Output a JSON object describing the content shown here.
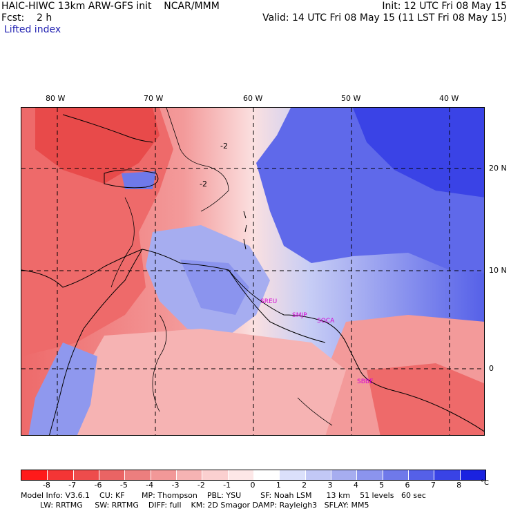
{
  "header": {
    "title": "HAIC-HIWC 13km ARW-GFS init    NCAR/MMM",
    "init": "Init: 12 UTC Fri 08 May 15",
    "fcst": "Fcst:    2 h",
    "valid": "Valid: 14 UTC Fri 08 May 15 (11 LST Fri 08 May 15)",
    "field": "Lifted index"
  },
  "axes": {
    "lon_labels": [
      "80 W",
      "70 W",
      "60 W",
      "50 W",
      "40 W"
    ],
    "lat_labels": [
      "20 N",
      "10 N",
      "0"
    ]
  },
  "stations": [
    "SREU",
    "SMJP",
    "SOCA",
    "SBBE"
  ],
  "contour_labels": [
    "-2",
    "-2"
  ],
  "colorbar": {
    "ticks": [
      "-8",
      "-7",
      "-6",
      "-5",
      "-4",
      "-3",
      "-2",
      "-1",
      "0",
      "1",
      "2",
      "3",
      "4",
      "5",
      "6",
      "7",
      "8"
    ],
    "unit": "°C",
    "colors": [
      "#ff1a1a",
      "#f43535",
      "#ee4c4c",
      "#ea6464",
      "#ec7e7e",
      "#f29898",
      "#f6b3b3",
      "#fbd0d0",
      "#fde7e7",
      "#ffffff",
      "#dbe0fb",
      "#c2c8f6",
      "#a6adf0",
      "#8b94ee",
      "#6f79ea",
      "#5560e8",
      "#3943e6",
      "#1a22e0"
    ]
  },
  "footer": {
    "line1": "Model Info: V3.6.1    CU: KF       MP: Thompson    PBL: YSU        SF: Noah LSM      13 km    51 levels   60 sec",
    "line2": "        LW: RRTMG     SW: RRTMG    DIFF: full    KM: 2D Smagor DAMP: Rayleigh3   SFLAY: MM5"
  },
  "map_colors": {
    "deep_red": "#e84a4a",
    "red": "#ee6a6a",
    "salmon": "#f39a9a",
    "pink": "#f7c4c4",
    "light_pink": "#fbe0e0",
    "light_blue": "#c7cdf5",
    "blue": "#8f98ee",
    "deep_blue": "#3a43e6"
  }
}
